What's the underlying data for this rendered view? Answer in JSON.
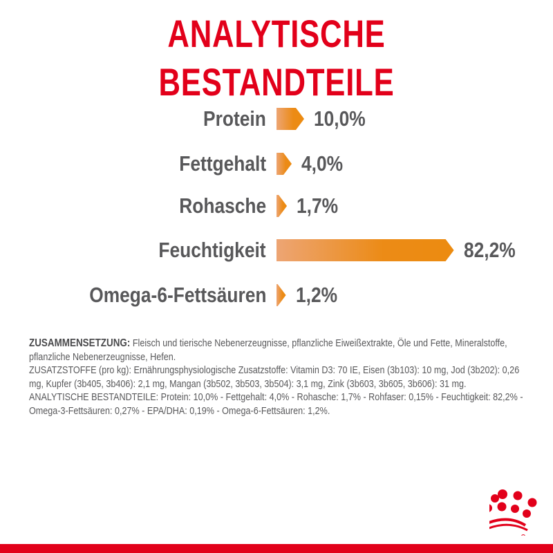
{
  "title": "ANALYTISCHE BESTANDTEILE",
  "chart_data": {
    "type": "bar",
    "orientation": "horizontal",
    "title": "ANALYTISCHE BESTANDTEILE",
    "categories": [
      "Protein",
      "Fettgehalt",
      "Rohasche",
      "Feuchtigkeit",
      "Omega-6-Fettsäuren"
    ],
    "values": [
      10.0,
      4.0,
      1.7,
      82.2,
      1.2
    ],
    "value_labels": [
      "10,0%",
      "4,0%",
      "1,7%",
      "82,2%",
      "1,2%"
    ],
    "unit": "%",
    "grid": false
  },
  "composition": {
    "heading": "ZUSAMMENSETZUNG:",
    "text": " Fleisch und tierische Nebenerzeugnisse, pflanzliche Eiweißextrakte, Öle und Fette, Mineralstoffe, pflanzliche Nebenerzeugnisse, Hefen.",
    "additives": "ZUSATZSTOFFE (pro kg): Ernährungsphysiologische Zusatzstoffe: Vitamin D3: 70 IE, Eisen (3b103): 10 mg, Jod (3b202): 0,26 mg, Kupfer (3b405, 3b406): 2,1 mg, Mangan (3b502, 3b503, 3b504): 3,1 mg, Zink (3b603, 3b605, 3b606): 31 mg.",
    "analysis": "ANALYTISCHE BESTANDTEILE: Protein: 10,0% - Fettgehalt: 4,0% - Rohasche: 1,7% - Rohfaser: 0,15% - Feuchtigkeit: 82,2% - Omega-3-Fettsäuren: 0,27% - EPA/DHA: 0,19% - Omega-6-Fettsäuren: 1,2%."
  },
  "colors": {
    "brand_red": "#e2001a",
    "bar_orange": "#ec8b16",
    "text_gray": "#58585a"
  },
  "logo": "royal-canin-crown-logo"
}
